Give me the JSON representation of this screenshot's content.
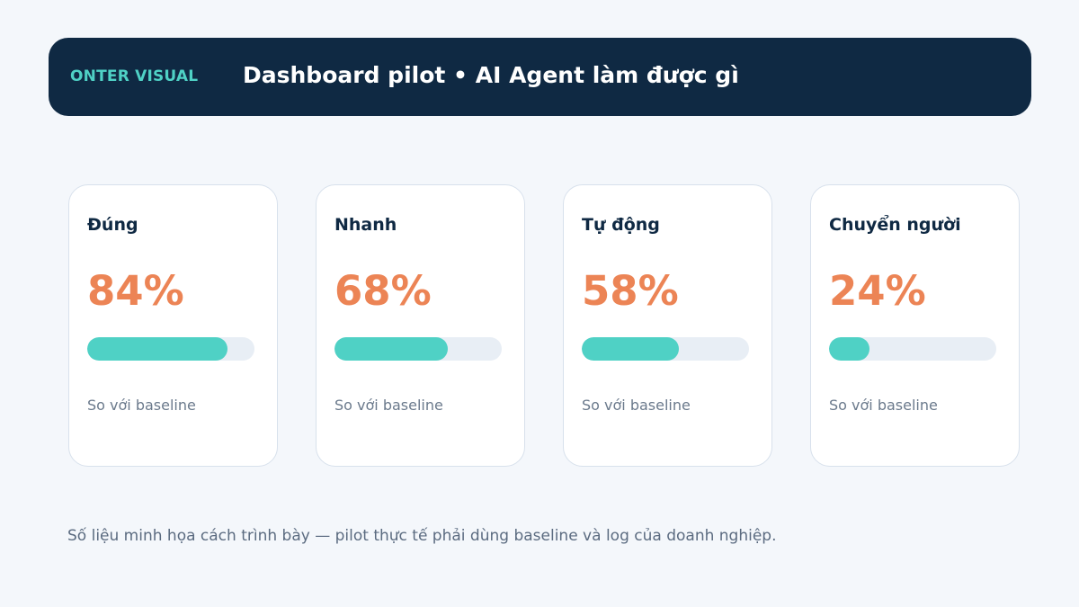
{
  "header": {
    "brand": "ONTER VISUAL",
    "title": "Dashboard pilot • AI Agent làm được gì"
  },
  "colors": {
    "header_bg": "#0f2943",
    "brand": "#4fd1c5",
    "value": "#ec8455",
    "bar_fill": "#4fd1c5",
    "bar_track": "#e8eef5"
  },
  "cards": [
    {
      "label": "Đúng",
      "value": "84%",
      "progress": 0.84,
      "note": "So với baseline"
    },
    {
      "label": "Nhanh",
      "value": "68%",
      "progress": 0.68,
      "note": "So với baseline"
    },
    {
      "label": "Tự động",
      "value": "58%",
      "progress": 0.58,
      "note": "So với baseline"
    },
    {
      "label": "Chuyển người",
      "value": "24%",
      "progress": 0.24,
      "note": "So với baseline"
    }
  ],
  "footnote": "Số liệu minh họa cách trình bày — pilot thực tế phải dùng baseline và log của doanh nghiệp."
}
